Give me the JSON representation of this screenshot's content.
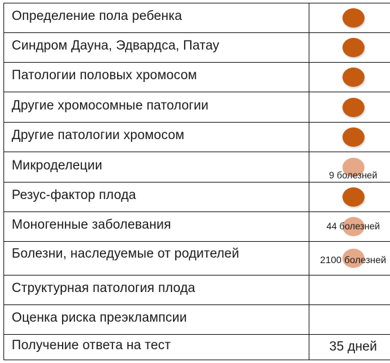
{
  "rows": [
    {
      "label": "Определение пола ребенка",
      "mark": "full",
      "note": ""
    },
    {
      "label": "Синдром Дауна, Эдвардса, Патау",
      "mark": "full",
      "note": ""
    },
    {
      "label": "Патологии половых хромосом",
      "mark": "full",
      "note": ""
    },
    {
      "label": "Другие хромосомные патологии",
      "mark": "full",
      "note": ""
    },
    {
      "label": "Другие патологии хромосом",
      "mark": "full",
      "note": ""
    },
    {
      "label": "Микроделеции",
      "mark": "partial",
      "note": "9 болезней"
    },
    {
      "label": "Резус-фактор плода",
      "mark": "full",
      "note": ""
    },
    {
      "label": "Моногенные заболевания",
      "mark": "partial",
      "note": "44 болезней"
    },
    {
      "label": "Болезни, наследуемые от родителей",
      "mark": "partial",
      "note": "2100 болезней"
    },
    {
      "label": "Структурная патология плода",
      "mark": "none",
      "note": ""
    },
    {
      "label": "Оценка риска преэклампсии",
      "mark": "none",
      "note": ""
    },
    {
      "label": "Получение ответа на тест",
      "mark": "none",
      "note": "",
      "value": "35 дней"
    }
  ],
  "colors": {
    "full_dot": "#c55a11",
    "partial_dot": "#e5a98a",
    "border": "#1a1a1a"
  }
}
